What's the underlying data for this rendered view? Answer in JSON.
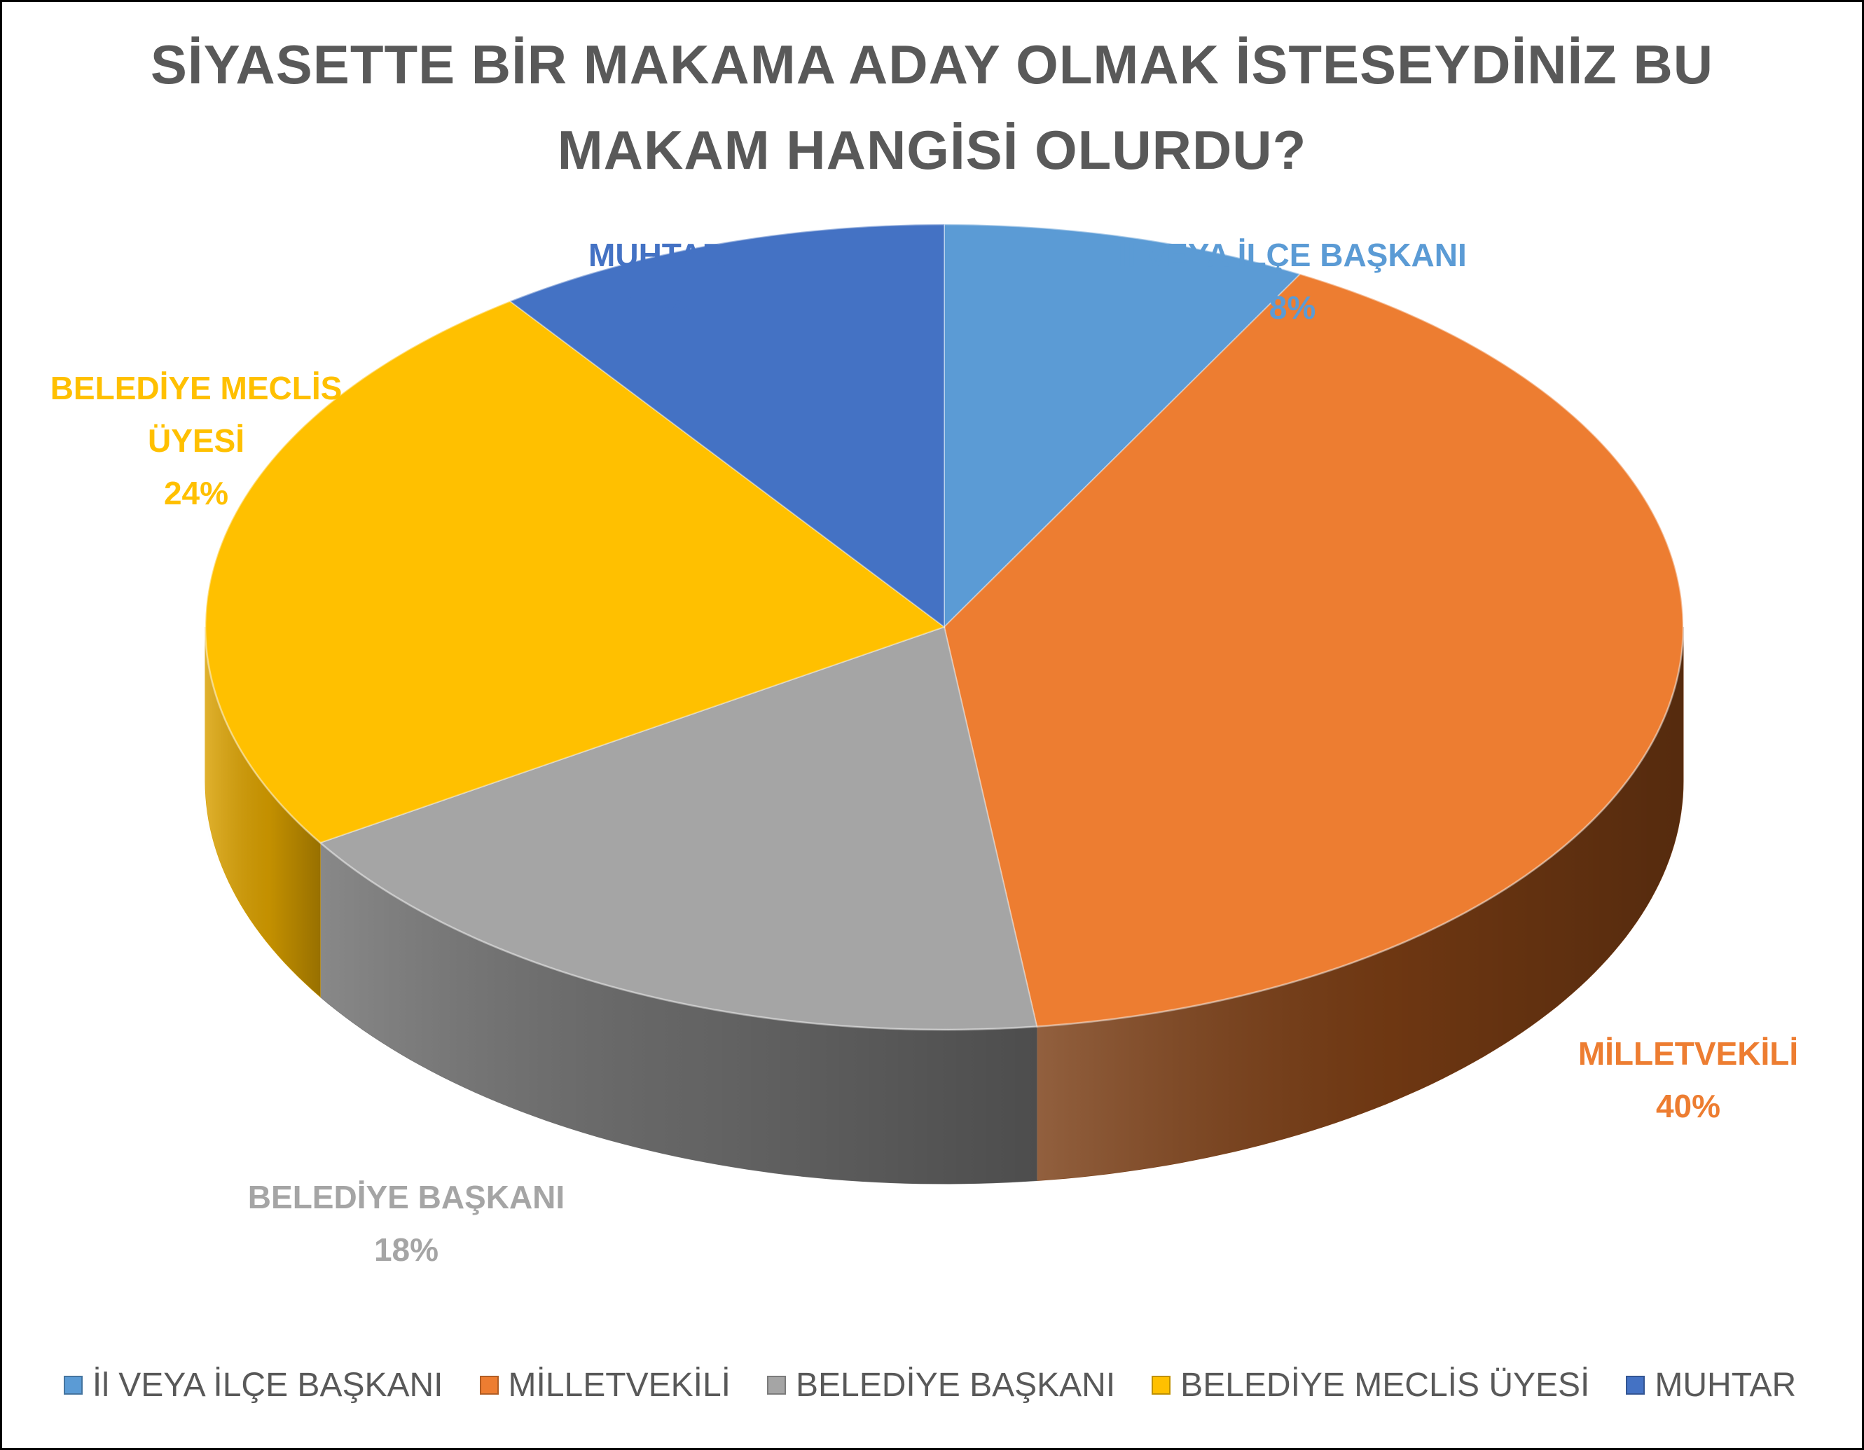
{
  "chart_data": {
    "type": "pie",
    "title_lines": [
      "SİYASETTE BİR MAKAMA ADAY OLMAK İSTESEYDİNİZ BU",
      "MAKAM HANGİSİ OLURDU?"
    ],
    "style": "3d",
    "legend_position": "bottom",
    "slices": [
      {
        "label": "İl VEYA İLÇE BAŞKANI",
        "legend_label": "İl VEYA İLÇE BAŞKANI",
        "label_lines": [
          "İl VEYA İLÇE BAŞKANI"
        ],
        "value": 8,
        "value_label": "8%",
        "color": "#5B9BD5",
        "side_color": "#3E72A4"
      },
      {
        "label": "MİLLETVEKİLİ",
        "legend_label": "MİLLETVEKİLİ",
        "label_lines": [
          "MİLLETVEKİLİ"
        ],
        "value": 40,
        "value_label": "40%",
        "color": "#ED7D31",
        "side_color": "#7A3D14"
      },
      {
        "label": "BELEDİYE BAŞKANI",
        "legend_label": "BELEDİYE BAŞKANI",
        "label_lines": [
          "BELEDİYE BAŞKANI"
        ],
        "value": 18,
        "value_label": "18%",
        "color": "#A5A5A5",
        "side_color": "#6E6E6E"
      },
      {
        "label": "BELEDİYE MECLİS ÜYESİ",
        "legend_label": "BELEDİYE MECLİS ÜYESİ",
        "label_lines": [
          "BELEDİYE MECLİS",
          "ÜYESİ"
        ],
        "value": 24,
        "value_label": "24%",
        "color": "#FFC000",
        "side_color": "#D9A000"
      },
      {
        "label": "MUHTAR",
        "legend_label": "MUHTAR",
        "label_lines": [
          "MUHTAR"
        ],
        "value": 10,
        "value_label": "10%",
        "color": "#4472C4",
        "side_color": "#2F528F"
      }
    ]
  }
}
